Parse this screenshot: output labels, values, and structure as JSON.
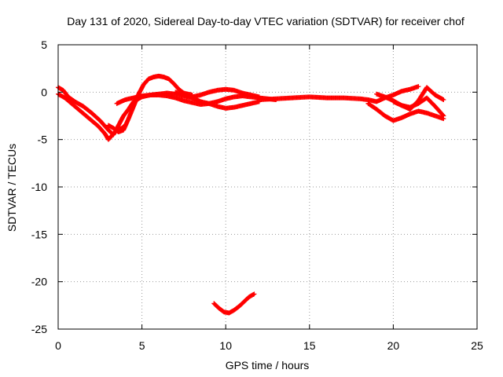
{
  "chart_data": {
    "type": "scatter",
    "title": "Day 131 of 2020, Sidereal Day-to-day VTEC variation (SDTVAR) for receiver chof",
    "xlabel": "GPS time / hours",
    "ylabel": "SDTVAR / TECUs",
    "xlim": [
      0,
      25
    ],
    "ylim": [
      -25,
      5
    ],
    "xticks": [
      0,
      5,
      10,
      15,
      20,
      25
    ],
    "yticks": [
      5,
      0,
      -5,
      -10,
      -15,
      -20,
      -25
    ],
    "grid": true,
    "marker": "plus",
    "color": "#ff0000",
    "series": [
      {
        "name": "arc-1",
        "x": [
          0.0,
          0.3,
          0.6,
          1.0,
          1.5,
          2.0,
          2.5,
          3.0,
          3.3,
          3.6,
          3.9,
          4.2,
          4.5,
          5.0,
          5.5,
          6.0,
          6.5,
          7.0,
          7.5,
          8.0,
          8.5,
          9.0,
          9.5,
          10.0,
          10.5,
          11.0,
          11.5,
          12.0
        ],
        "y": [
          0.5,
          0.2,
          -0.5,
          -1.0,
          -1.5,
          -2.2,
          -3.0,
          -4.0,
          -4.5,
          -3.5,
          -2.5,
          -1.8,
          -1.0,
          -0.5,
          -0.3,
          -0.2,
          -0.1,
          -0.2,
          -0.4,
          -0.6,
          -1.0,
          -1.2,
          -1.5,
          -1.7,
          -1.6,
          -1.4,
          -1.2,
          -1.0
        ]
      },
      {
        "name": "arc-2",
        "x": [
          0.0,
          0.4,
          0.8,
          1.2,
          1.6,
          2.0,
          2.4,
          2.8,
          3.0,
          3.2,
          3.5,
          3.8,
          4.0
        ],
        "y": [
          -0.2,
          -0.6,
          -1.2,
          -1.8,
          -2.4,
          -3.0,
          -3.6,
          -4.4,
          -5.0,
          -4.6,
          -4.0,
          -3.8,
          -3.5
        ]
      },
      {
        "name": "arc-3",
        "x": [
          3.0,
          3.3,
          3.6,
          3.9,
          4.2,
          4.5,
          4.8,
          5.1,
          5.4,
          5.7,
          6.0,
          6.3,
          6.6,
          6.9,
          7.2,
          7.5,
          8.0
        ],
        "y": [
          -3.5,
          -3.8,
          -4.2,
          -4.0,
          -2.8,
          -1.5,
          -0.2,
          0.8,
          1.4,
          1.6,
          1.7,
          1.6,
          1.4,
          0.9,
          0.3,
          -0.1,
          -0.3
        ]
      },
      {
        "name": "arc-4",
        "x": [
          3.5,
          4.0,
          4.5,
          5.0,
          5.5,
          6.0,
          6.5,
          7.0,
          7.5,
          8.0,
          8.5,
          9.0,
          9.5,
          10.0,
          10.5,
          11.0,
          11.5,
          12.0,
          12.5,
          13.0
        ],
        "y": [
          -1.2,
          -0.8,
          -0.6,
          -0.4,
          -0.3,
          -0.3,
          -0.4,
          -0.6,
          -0.9,
          -1.1,
          -1.3,
          -1.2,
          -1.0,
          -0.7,
          -0.5,
          -0.4,
          -0.5,
          -0.6,
          -0.7,
          -0.8
        ]
      },
      {
        "name": "arc-5",
        "x": [
          7.0,
          7.5,
          8.0,
          8.5,
          9.0,
          9.5,
          10.0,
          10.5,
          11.0,
          11.5,
          12.0
        ],
        "y": [
          0.0,
          -0.3,
          -0.5,
          -0.3,
          0.0,
          0.2,
          0.3,
          0.2,
          -0.1,
          -0.3,
          -0.5
        ]
      },
      {
        "name": "arc-6",
        "x": [
          12.0,
          13.0,
          14.0,
          15.0,
          16.0,
          17.0,
          18.0,
          18.5,
          19.0,
          19.5,
          20.0,
          20.5,
          21.0,
          21.5
        ],
        "y": [
          -0.8,
          -0.7,
          -0.6,
          -0.5,
          -0.6,
          -0.6,
          -0.7,
          -0.8,
          -1.0,
          -0.6,
          -0.3,
          0.1,
          0.3,
          0.6
        ]
      },
      {
        "name": "arc-7",
        "x": [
          18.5,
          19.0,
          19.5,
          20.0,
          20.5,
          21.0,
          21.5,
          22.0,
          22.5,
          23.0
        ],
        "y": [
          -1.2,
          -1.8,
          -2.5,
          -3.0,
          -2.7,
          -2.3,
          -2.0,
          -2.2,
          -2.5,
          -2.8
        ]
      },
      {
        "name": "arc-8",
        "x": [
          19.0,
          19.5,
          20.0,
          20.5,
          21.0,
          21.5,
          22.0,
          22.5,
          23.0
        ],
        "y": [
          -0.2,
          -0.5,
          -0.9,
          -1.4,
          -1.8,
          -0.9,
          0.5,
          -0.3,
          -0.8
        ]
      },
      {
        "name": "arc-9",
        "x": [
          20.0,
          20.5,
          21.0,
          21.5,
          22.0,
          22.5,
          23.0
        ],
        "y": [
          -1.0,
          -1.4,
          -1.6,
          -1.2,
          -0.6,
          -1.5,
          -2.5
        ]
      },
      {
        "name": "arc-10",
        "x": [
          9.3,
          9.6,
          9.9,
          10.2,
          10.5,
          10.8,
          11.1,
          11.4,
          11.7
        ],
        "y": [
          -22.3,
          -22.8,
          -23.2,
          -23.3,
          -23.0,
          -22.6,
          -22.1,
          -21.6,
          -21.3
        ]
      }
    ]
  }
}
